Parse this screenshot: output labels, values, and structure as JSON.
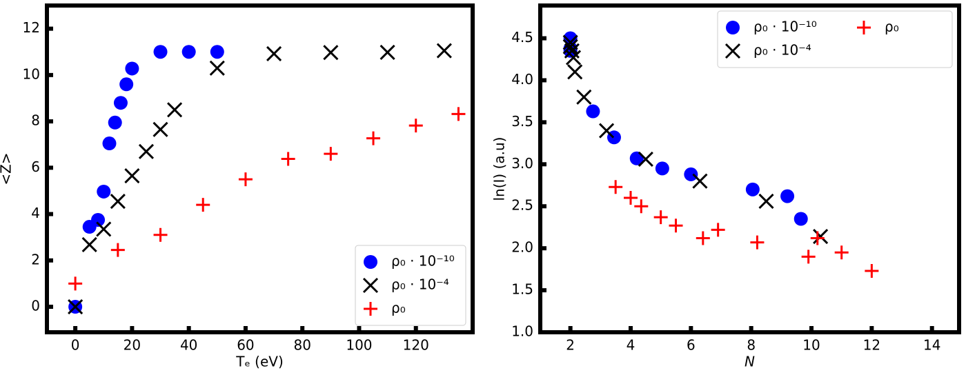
{
  "chart_data": [
    {
      "type": "scatter",
      "xlabel": "Tₑ (eV)",
      "ylabel": "<Z>",
      "xlim": [
        -10,
        140
      ],
      "ylim": [
        -1.1,
        13
      ],
      "xticks": [
        0,
        20,
        40,
        60,
        80,
        100,
        120
      ],
      "yticks": [
        0,
        2,
        4,
        6,
        8,
        10,
        12
      ],
      "legend": "lower right",
      "legend_columns": 1,
      "series": [
        {
          "name": "ρ₀ · 10⁻¹⁰",
          "color": "#0000ff",
          "marker": "o",
          "x": [
            0,
            5,
            8,
            10,
            12,
            14,
            16,
            18,
            20,
            30,
            40,
            50
          ],
          "values": [
            0,
            3.45,
            3.75,
            4.97,
            7.05,
            7.95,
            8.8,
            9.6,
            10.28,
            11,
            11,
            11
          ]
        },
        {
          "name": "ρ₀ · 10⁻⁴",
          "color": "#000000",
          "marker": "x",
          "x": [
            0,
            5,
            10,
            15,
            20,
            25,
            30,
            35,
            50,
            70,
            90,
            110,
            130
          ],
          "values": [
            0,
            2.68,
            3.35,
            4.55,
            5.65,
            6.7,
            7.65,
            8.5,
            10.3,
            10.92,
            10.97,
            10.98,
            11.05
          ]
        },
        {
          "name": "ρ₀",
          "color": "#ff0000",
          "marker": "+",
          "x": [
            0,
            15,
            30,
            45,
            60,
            75,
            90,
            105,
            120,
            135
          ],
          "values": [
            1,
            2.45,
            3.1,
            4.4,
            5.5,
            6.38,
            6.6,
            7.27,
            7.82,
            8.32
          ]
        }
      ]
    },
    {
      "type": "scatter",
      "xlabel": "N",
      "ylabel": "ln(I) (a.u)",
      "xlim": [
        1,
        14.9
      ],
      "ylim": [
        1.0,
        4.89
      ],
      "xticks": [
        2,
        4,
        6,
        8,
        10,
        12,
        14
      ],
      "yticks": [
        {
          "value": 1,
          "label": "1.0"
        },
        1.5,
        {
          "value": 2,
          "label": "2.0"
        },
        2.5,
        {
          "value": 3,
          "label": "3.0"
        },
        3.5,
        {
          "value": 4,
          "label": "4.0"
        },
        4.5
      ],
      "legend": "upper right",
      "legend_columns": 2,
      "series": [
        {
          "name": "ρ₀ · 10⁻¹⁰",
          "color": "#0000ff",
          "marker": "o",
          "x": [
            2,
            2,
            2,
            2.75,
            3.45,
            4.2,
            5.05,
            6,
            8.05,
            9.2,
            9.65
          ],
          "values": [
            4.5,
            4.38,
            4.35,
            3.63,
            3.32,
            3.07,
            2.95,
            2.88,
            2.7,
            2.62,
            2.35
          ]
        },
        {
          "name": "ρ₀ · 10⁻⁴",
          "color": "#000000",
          "marker": "x",
          "x": [
            2,
            2,
            2.05,
            2.1,
            2.15,
            2.45,
            3.2,
            4.5,
            6.3,
            8.5,
            10.3
          ],
          "values": [
            4.45,
            4.4,
            4.35,
            4.27,
            4.1,
            3.8,
            3.4,
            3.06,
            2.8,
            2.56,
            2.14
          ]
        },
        {
          "name": "ρ₀",
          "color": "#ff0000",
          "marker": "+",
          "x": [
            3.5,
            4,
            4.35,
            5,
            5.5,
            6.4,
            6.9,
            8.2,
            9.9,
            10.2,
            11,
            12
          ],
          "values": [
            2.73,
            2.6,
            2.5,
            2.37,
            2.27,
            2.12,
            2.22,
            2.07,
            1.9,
            2.12,
            1.95,
            1.73
          ]
        }
      ]
    }
  ]
}
